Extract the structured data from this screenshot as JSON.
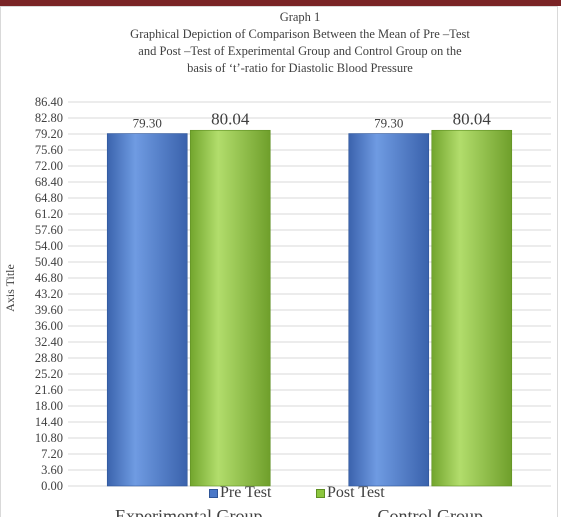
{
  "chart_data": {
    "type": "bar",
    "title_lines": [
      "Graph 1",
      "Graphical Depiction of Comparison Between the Mean of Pre –Test",
      "and Post –Test of Experimental Group and Control Group on the",
      "basis of ‘t’-ratio for Diastolic Blood Pressure"
    ],
    "ylabel": "Axis Title",
    "xlabel": "",
    "categories": [
      "Experimental Group",
      "Control Group"
    ],
    "series": [
      {
        "name": "Pre Test",
        "values": [
          79.3,
          79.3
        ],
        "labels": [
          "79.30",
          "79.30"
        ],
        "color": "#4a78c8"
      },
      {
        "name": "Post Test",
        "values": [
          80.04,
          80.04
        ],
        "labels": [
          "80.04",
          "80.04"
        ],
        "color": "#8cc63e"
      }
    ],
    "ylim": [
      0,
      86.4
    ],
    "yticks": [
      "0.00",
      "3.60",
      "7.20",
      "10.80",
      "14.40",
      "18.00",
      "21.60",
      "25.20",
      "28.80",
      "32.40",
      "36.00",
      "39.60",
      "43.20",
      "46.80",
      "50.40",
      "54.00",
      "57.60",
      "61.20",
      "64.80",
      "68.40",
      "72.00",
      "75.60",
      "79.20",
      "82.80",
      "86.40"
    ],
    "grid": true,
    "legend_position": "bottom"
  },
  "colors": {
    "top_band": "#7a2426",
    "grid": "#d9d9d9",
    "text": "#404040"
  }
}
